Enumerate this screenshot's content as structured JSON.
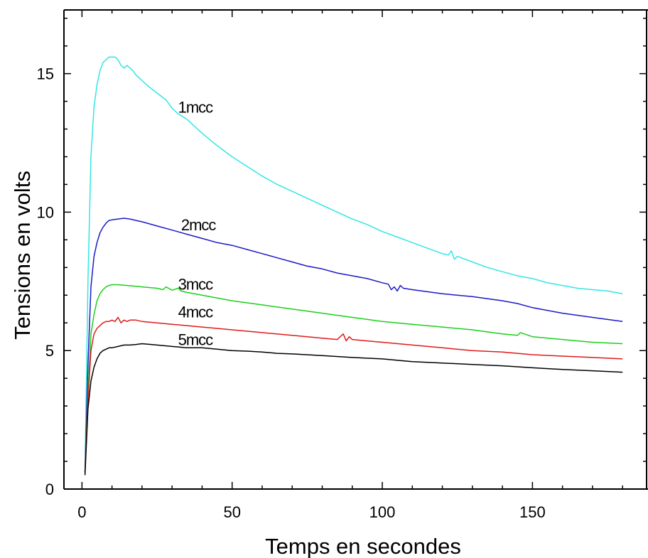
{
  "chart_data": {
    "type": "line",
    "title": "",
    "xlabel": "Temps en secondes",
    "ylabel": "Tensions en volts",
    "xlim": [
      -6,
      188
    ],
    "ylim": [
      0,
      17.3
    ],
    "x_ticks": [
      0,
      50,
      100,
      150
    ],
    "y_ticks": [
      0,
      5,
      10,
      15
    ],
    "grid": false,
    "legend": "inline labels",
    "series": [
      {
        "name": "1mcc",
        "color": "#33e5e5",
        "label_at": [
          32,
          13.8
        ],
        "x": [
          1,
          2,
          3,
          4,
          5,
          6,
          7,
          8,
          9,
          10,
          11,
          12,
          13,
          14,
          15,
          16,
          17,
          18,
          20,
          22,
          25,
          28,
          30,
          32,
          35,
          40,
          45,
          50,
          55,
          60,
          65,
          70,
          75,
          80,
          85,
          90,
          95,
          100,
          105,
          110,
          115,
          120,
          122,
          123,
          124,
          125,
          130,
          135,
          140,
          145,
          150,
          155,
          160,
          165,
          170,
          175,
          180
        ],
        "values": [
          0.6,
          7.5,
          12.0,
          13.8,
          14.6,
          15.1,
          15.4,
          15.5,
          15.6,
          15.6,
          15.6,
          15.5,
          15.3,
          15.2,
          15.3,
          15.2,
          15.1,
          14.95,
          14.75,
          14.55,
          14.3,
          14.05,
          13.75,
          13.55,
          13.35,
          12.85,
          12.4,
          12.0,
          11.65,
          11.3,
          11.0,
          10.75,
          10.5,
          10.25,
          10.0,
          9.75,
          9.55,
          9.3,
          9.1,
          8.9,
          8.7,
          8.5,
          8.45,
          8.6,
          8.3,
          8.4,
          8.2,
          8.0,
          7.85,
          7.7,
          7.6,
          7.45,
          7.35,
          7.25,
          7.2,
          7.15,
          7.05
        ]
      },
      {
        "name": "2mcc",
        "color": "#1a1ac8",
        "label_at": [
          33,
          9.55
        ],
        "x": [
          1,
          2,
          3,
          4,
          5,
          6,
          7,
          8,
          9,
          10,
          12,
          14,
          16,
          18,
          20,
          25,
          30,
          35,
          40,
          45,
          50,
          55,
          60,
          65,
          70,
          75,
          80,
          85,
          90,
          95,
          100,
          102,
          103,
          104,
          105,
          106,
          107,
          110,
          120,
          130,
          140,
          145,
          150,
          160,
          170,
          180
        ],
        "values": [
          0.6,
          4.5,
          7.3,
          8.4,
          8.9,
          9.25,
          9.45,
          9.6,
          9.7,
          9.72,
          9.75,
          9.78,
          9.75,
          9.7,
          9.65,
          9.5,
          9.35,
          9.2,
          9.05,
          8.9,
          8.8,
          8.65,
          8.5,
          8.35,
          8.2,
          8.05,
          7.95,
          7.8,
          7.7,
          7.6,
          7.45,
          7.4,
          7.2,
          7.3,
          7.15,
          7.35,
          7.25,
          7.2,
          7.05,
          6.95,
          6.8,
          6.7,
          6.55,
          6.35,
          6.2,
          6.05
        ]
      },
      {
        "name": "3mcc",
        "color": "#1ad01a",
        "label_at": [
          32,
          7.4
        ],
        "x": [
          1,
          2,
          3,
          4,
          5,
          6,
          7,
          8,
          9,
          10,
          12,
          14,
          16,
          18,
          20,
          25,
          27,
          28,
          30,
          32,
          33,
          35,
          40,
          45,
          50,
          60,
          70,
          80,
          90,
          100,
          110,
          120,
          130,
          140,
          145,
          146,
          150,
          160,
          170,
          180
        ],
        "values": [
          0.6,
          3.5,
          5.6,
          6.3,
          6.8,
          7.05,
          7.2,
          7.3,
          7.35,
          7.38,
          7.38,
          7.36,
          7.34,
          7.32,
          7.3,
          7.25,
          7.2,
          7.3,
          7.18,
          7.25,
          7.15,
          7.1,
          7.0,
          6.9,
          6.8,
          6.65,
          6.5,
          6.35,
          6.2,
          6.05,
          5.95,
          5.85,
          5.75,
          5.6,
          5.55,
          5.65,
          5.5,
          5.4,
          5.3,
          5.25
        ]
      },
      {
        "name": "4mcc",
        "color": "#e01a1a",
        "label_at": [
          32,
          6.4
        ],
        "x": [
          1,
          2,
          3,
          4,
          5,
          6,
          7,
          8,
          9,
          10,
          11,
          12,
          13,
          14,
          15,
          16,
          18,
          20,
          25,
          30,
          35,
          40,
          45,
          50,
          60,
          70,
          80,
          85,
          87,
          88,
          89,
          90,
          95,
          100,
          110,
          120,
          130,
          140,
          150,
          160,
          170,
          180
        ],
        "values": [
          0.6,
          3.2,
          5.0,
          5.6,
          5.8,
          5.9,
          6.0,
          6.05,
          6.05,
          6.1,
          6.05,
          6.2,
          6.0,
          6.1,
          6.05,
          6.1,
          6.1,
          6.05,
          6.0,
          5.95,
          5.9,
          5.85,
          5.8,
          5.75,
          5.65,
          5.55,
          5.45,
          5.4,
          5.6,
          5.35,
          5.5,
          5.4,
          5.35,
          5.3,
          5.2,
          5.1,
          5.0,
          4.95,
          4.85,
          4.8,
          4.75,
          4.7
        ]
      },
      {
        "name": "5mcc",
        "color": "#000000",
        "label_at": [
          32,
          5.4
        ],
        "x": [
          1,
          2,
          3,
          4,
          5,
          6,
          7,
          8,
          9,
          10,
          12,
          14,
          16,
          18,
          20,
          25,
          30,
          35,
          40,
          45,
          50,
          55,
          60,
          65,
          70,
          80,
          90,
          100,
          110,
          120,
          130,
          140,
          150,
          160,
          170,
          180
        ],
        "values": [
          0.5,
          2.9,
          3.9,
          4.4,
          4.7,
          4.9,
          5.0,
          5.05,
          5.1,
          5.1,
          5.15,
          5.2,
          5.2,
          5.22,
          5.25,
          5.2,
          5.15,
          5.1,
          5.1,
          5.05,
          5.0,
          4.98,
          4.95,
          4.9,
          4.88,
          4.82,
          4.75,
          4.7,
          4.6,
          4.55,
          4.5,
          4.45,
          4.38,
          4.32,
          4.27,
          4.22
        ]
      }
    ]
  }
}
